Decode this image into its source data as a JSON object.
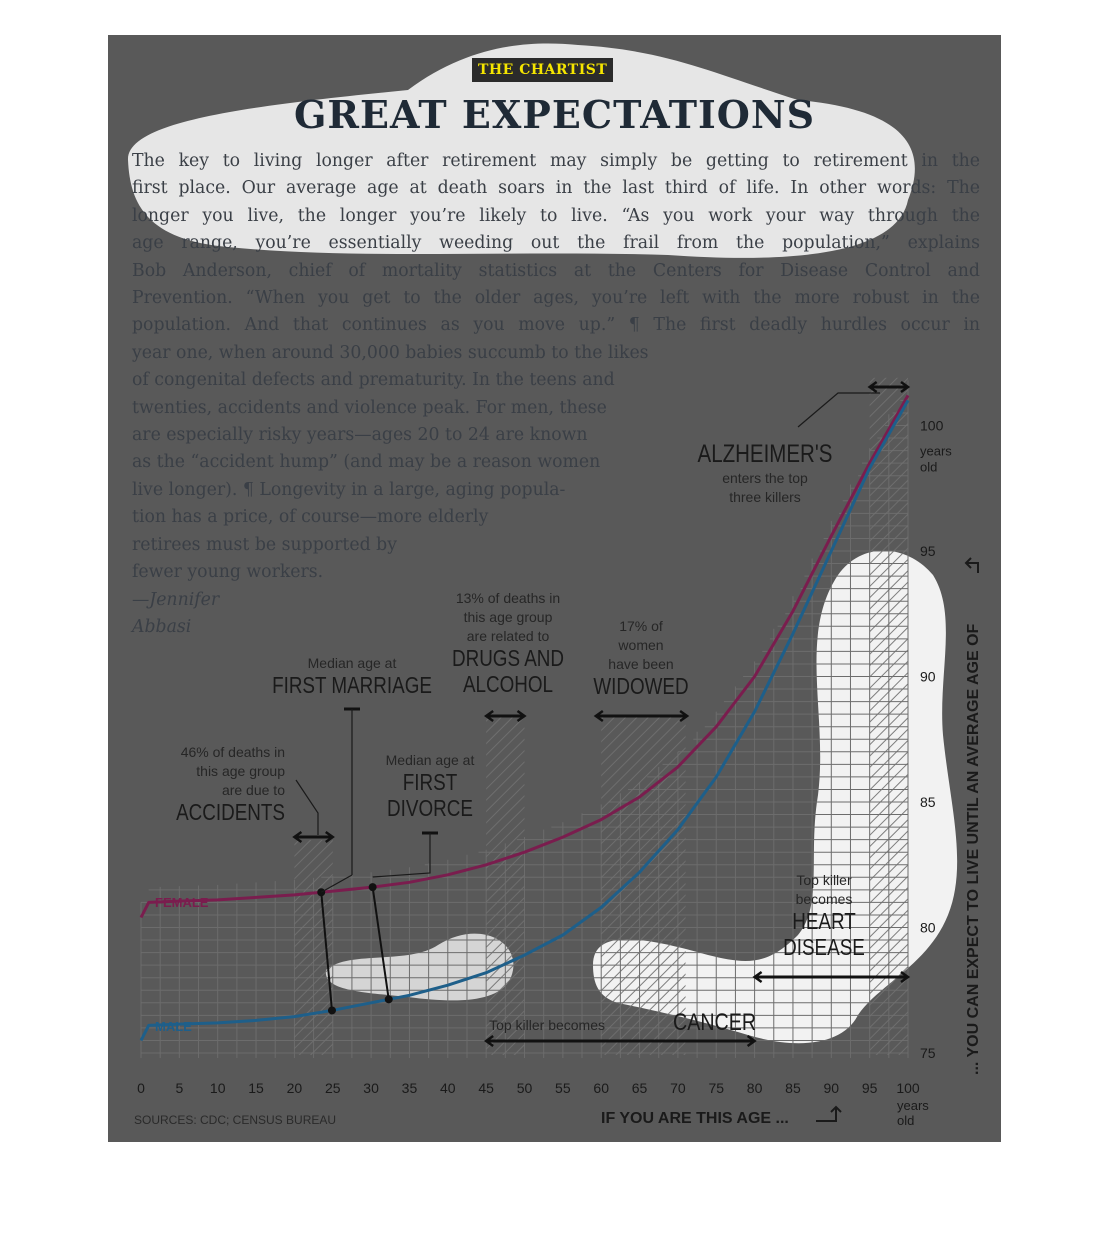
{
  "header": {
    "kicker": "THE CHARTIST",
    "headline": "GREAT EXPECTATIONS"
  },
  "article": {
    "lines": [
      "The key to living longer after retirement may simply be getting to retirement in the",
      "first place. Our average age at death soars in the last third of life. In other words: The",
      "longer you live, the longer you’re likely to live. “As you work your way through the",
      "age range, you’re essentially weeding out the frail from the population,” explains",
      "Bob Anderson, chief of mortality statistics at the Centers for Disease Control and",
      "Prevention. “When you get to the older ages, you’re left with the more robust in the",
      "population. And that continues as you move up.” ¶ The first deadly hurdles occur in",
      "year one, when around 30,000 babies succumb to the likes",
      "of congenital defects and prematurity. In the teens and",
      "twenties, accidents and violence peak. For men, these",
      "are especially risky years—ages 20 to 24 are known",
      "as the “accident hump” (and may be a reason women",
      "live longer). ¶ Longevity in a large, aging popula-",
      "tion has a price, of course—more elderly",
      "retirees must be supported by",
      "fewer young workers."
    ],
    "byline_1": "—Jennifer",
    "byline_2": "Abbasi"
  },
  "chart_data": {
    "type": "line",
    "xlabel": "IF YOU ARE THIS AGE ...",
    "x_unit_label": [
      "years",
      "old"
    ],
    "ylabel": "... YOU CAN EXPECT TO LIVE UNTIL AN AVERAGE AGE OF",
    "y_unit_label": [
      "years",
      "old"
    ],
    "xlim": [
      0,
      100
    ],
    "ylim": [
      74,
      102
    ],
    "x_ticks": [
      0,
      5,
      10,
      15,
      20,
      25,
      30,
      35,
      40,
      45,
      50,
      55,
      60,
      65,
      70,
      75,
      80,
      85,
      90,
      95,
      100
    ],
    "y_ticks": [
      75,
      80,
      85,
      90,
      95,
      100
    ],
    "grid": true,
    "series": [
      {
        "name": "FEMALE",
        "color": "#7a1d4e",
        "x": [
          0,
          1,
          5,
          10,
          15,
          20,
          25,
          30,
          35,
          40,
          45,
          50,
          55,
          60,
          65,
          70,
          75,
          80,
          85,
          90,
          95,
          100
        ],
        "y": [
          80.4,
          81,
          81.05,
          81.1,
          81.2,
          81.3,
          81.45,
          81.6,
          81.8,
          82.1,
          82.5,
          83.0,
          83.6,
          84.3,
          85.2,
          86.4,
          88.0,
          90.0,
          92.6,
          95.6,
          98.5,
          101.2
        ]
      },
      {
        "name": "MALE",
        "color": "#1e5f8a",
        "x": [
          0,
          1,
          5,
          10,
          15,
          20,
          25,
          30,
          35,
          40,
          45,
          50,
          55,
          60,
          65,
          70,
          75,
          80,
          85,
          90,
          95,
          100
        ],
        "y": [
          75.5,
          76.1,
          76.15,
          76.2,
          76.3,
          76.45,
          76.7,
          77.0,
          77.3,
          77.7,
          78.2,
          78.9,
          79.7,
          80.8,
          82.2,
          83.9,
          86.0,
          88.6,
          91.7,
          95.0,
          98.3,
          101.0
        ]
      }
    ],
    "annotations": [
      {
        "id": "accidents",
        "range": [
          20,
          25
        ],
        "lines": [
          "46% of deaths in",
          "this age group",
          "are due to"
        ],
        "headline": [
          "ACCIDENTS"
        ]
      },
      {
        "id": "first-marriage",
        "age_female": 23.5,
        "age_male": 24.9,
        "lines": [
          "Median age at"
        ],
        "headline": [
          "FIRST MARRIAGE"
        ]
      },
      {
        "id": "first-divorce",
        "age_female": 30.2,
        "age_male": 32.3,
        "lines": [
          "Median age at"
        ],
        "headline": [
          "FIRST",
          "DIVORCE"
        ]
      },
      {
        "id": "drugs-alcohol",
        "range": [
          45,
          50
        ],
        "lines": [
          "13% of deaths in",
          "this age group",
          "are related to"
        ],
        "headline": [
          "DRUGS AND",
          "ALCOHOL"
        ]
      },
      {
        "id": "widowed",
        "range": [
          60,
          71
        ],
        "lines": [
          "17% of",
          "women",
          "have been"
        ],
        "headline": [
          "WIDOWED"
        ]
      },
      {
        "id": "alzheimers",
        "range": [
          95,
          100
        ],
        "lines": [
          "enters the top",
          "three killers"
        ],
        "headline": [
          "ALZHEIMER'S"
        ]
      },
      {
        "id": "heart-disease",
        "range": [
          80,
          100
        ],
        "lines": [
          "Top killer",
          "becomes"
        ],
        "headline": [
          "HEART",
          "DISEASE"
        ]
      },
      {
        "id": "cancer",
        "range": [
          45,
          80
        ],
        "lines": [
          "Top killer becomes"
        ],
        "headline": [
          "CANCER"
        ]
      }
    ],
    "source": "SOURCES: CDC; CENSUS BUREAU"
  },
  "colors": {
    "panel": "#595959",
    "female": "#7a1d4e",
    "male": "#1e5f8a",
    "kicker_bg": "#2b2b2b",
    "kicker_text": "#f5e500",
    "headline": "#1f2a36"
  }
}
